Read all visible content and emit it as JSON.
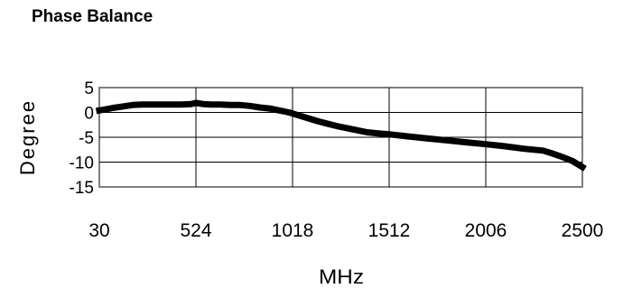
{
  "chart_data": {
    "type": "line",
    "title": "Phase Balance",
    "xlabel": "MHz",
    "ylabel": "Degree",
    "xlim": [
      30,
      2500
    ],
    "ylim": [
      -15,
      5
    ],
    "x_ticks": [
      30,
      524,
      1018,
      1512,
      2006,
      2500
    ],
    "y_ticks": [
      5,
      0,
      -5,
      -10,
      -15
    ],
    "grid": true,
    "legend": "none",
    "line_color": "#000000",
    "series": [
      {
        "x": [
          30,
          60,
          100,
          150,
          200,
          250,
          300,
          350,
          400,
          450,
          500,
          524,
          560,
          600,
          650,
          700,
          750,
          800,
          850,
          900,
          950,
          1000,
          1050,
          1100,
          1150,
          1200,
          1250,
          1300,
          1350,
          1400,
          1450,
          1512,
          1600,
          1700,
          1800,
          1900,
          2006,
          2100,
          2200,
          2300,
          2350,
          2400,
          2450,
          2500
        ],
        "y": [
          0.4,
          0.6,
          0.9,
          1.2,
          1.5,
          1.6,
          1.6,
          1.6,
          1.6,
          1.6,
          1.7,
          1.9,
          1.7,
          1.6,
          1.6,
          1.5,
          1.5,
          1.3,
          1.0,
          0.8,
          0.4,
          0.0,
          -0.6,
          -1.2,
          -1.8,
          -2.3,
          -2.8,
          -3.2,
          -3.6,
          -4.0,
          -4.2,
          -4.4,
          -4.8,
          -5.2,
          -5.6,
          -6.0,
          -6.4,
          -6.8,
          -7.3,
          -7.7,
          -8.3,
          -9.0,
          -9.8,
          -11.0
        ]
      }
    ]
  }
}
